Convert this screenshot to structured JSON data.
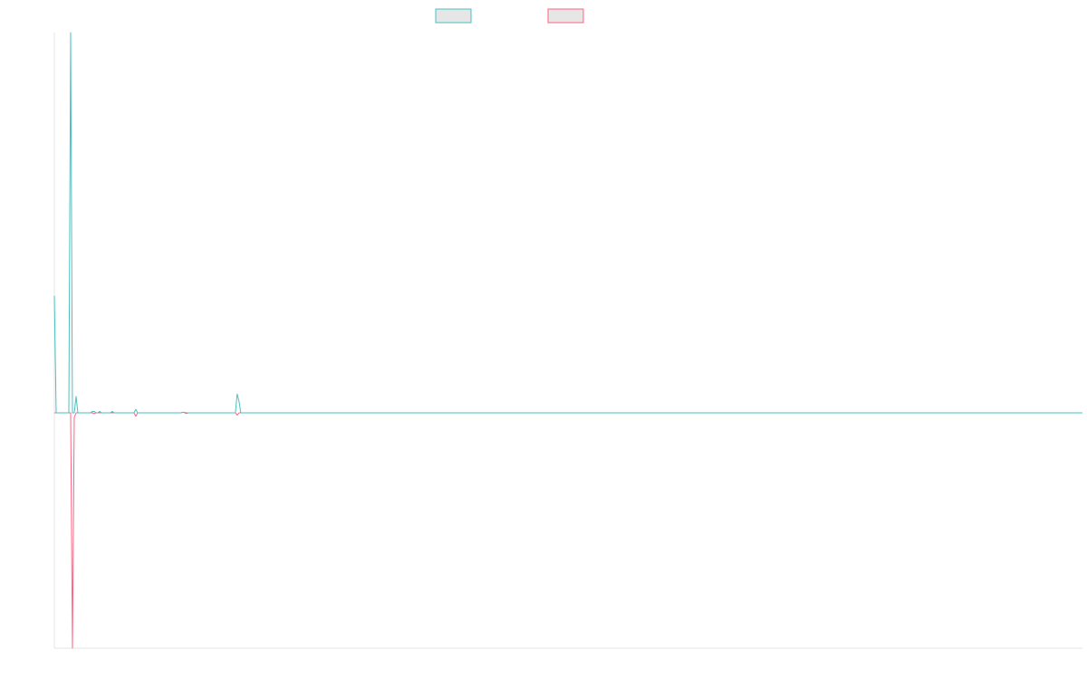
{
  "chart_data": {
    "type": "line",
    "title": "",
    "xlabel": "",
    "ylabel": "",
    "xlim": [
      0,
      568
    ],
    "ylim": [
      -1,
      1.623
    ],
    "grid": false,
    "legend_position": "top-center",
    "series": [
      {
        "color": "#4bc0c0",
        "fill": "#e6e6e6",
        "points": [
          [
            0,
            0.5
          ],
          [
            1,
            0.0
          ],
          [
            2,
            0.0
          ],
          [
            3,
            0.0
          ],
          [
            4,
            0.0
          ],
          [
            5,
            0.0
          ],
          [
            6,
            0.0
          ],
          [
            7,
            0.0
          ],
          [
            8,
            0.0
          ],
          [
            9,
            1.623
          ],
          [
            10,
            0.0
          ],
          [
            11,
            0.0
          ],
          [
            12,
            0.07
          ],
          [
            13,
            0.0
          ],
          [
            14,
            0.0
          ],
          [
            15,
            0.0
          ],
          [
            16,
            0.0
          ],
          [
            17,
            0.0
          ],
          [
            18,
            0.0
          ],
          [
            19,
            0.0
          ],
          [
            20,
            0.0
          ],
          [
            21,
            0.006
          ],
          [
            22,
            0.006
          ],
          [
            23,
            0.0
          ],
          [
            24,
            0.0
          ],
          [
            25,
            0.006
          ],
          [
            26,
            0.0
          ],
          [
            27,
            0.0
          ],
          [
            28,
            0.0
          ],
          [
            29,
            0.0
          ],
          [
            30,
            0.0
          ],
          [
            31,
            0.0
          ],
          [
            32,
            0.006
          ],
          [
            33,
            0.0
          ],
          [
            34,
            0.0
          ],
          [
            35,
            0.0
          ],
          [
            36,
            0.0
          ],
          [
            37,
            0.0
          ],
          [
            38,
            0.0
          ],
          [
            39,
            0.0
          ],
          [
            40,
            0.0
          ],
          [
            41,
            0.0
          ],
          [
            42,
            0.0
          ],
          [
            43,
            0.0
          ],
          [
            44,
            0.0
          ],
          [
            45,
            0.015
          ],
          [
            46,
            0.0
          ],
          [
            47,
            0.0
          ],
          [
            48,
            0.0
          ],
          [
            49,
            0.0
          ],
          [
            50,
            0.0
          ],
          [
            51,
            0.0
          ],
          [
            52,
            0.0
          ],
          [
            53,
            0.0
          ],
          [
            54,
            0.0
          ],
          [
            55,
            0.0
          ],
          [
            56,
            0.0
          ],
          [
            57,
            0.0
          ],
          [
            58,
            0.0
          ],
          [
            59,
            0.0
          ],
          [
            60,
            0.0
          ],
          [
            61,
            0.0
          ],
          [
            62,
            0.0
          ],
          [
            63,
            0.0
          ],
          [
            64,
            0.0
          ],
          [
            65,
            0.0
          ],
          [
            66,
            0.0
          ],
          [
            67,
            0.0
          ],
          [
            68,
            0.0
          ],
          [
            69,
            0.0
          ],
          [
            70,
            0.0
          ],
          [
            71,
            0.002
          ],
          [
            72,
            0.002
          ],
          [
            73,
            0.0
          ],
          [
            74,
            0.0
          ],
          [
            75,
            0.0
          ],
          [
            76,
            0.0
          ],
          [
            77,
            0.0
          ],
          [
            78,
            0.0
          ],
          [
            79,
            0.0
          ],
          [
            80,
            0.0
          ],
          [
            81,
            0.0
          ],
          [
            82,
            0.0
          ],
          [
            83,
            0.0
          ],
          [
            84,
            0.0
          ],
          [
            85,
            0.0
          ],
          [
            86,
            0.0
          ],
          [
            87,
            0.0
          ],
          [
            88,
            0.0
          ],
          [
            89,
            0.0
          ],
          [
            90,
            0.0
          ],
          [
            91,
            0.0
          ],
          [
            92,
            0.0
          ],
          [
            93,
            0.0
          ],
          [
            94,
            0.0
          ],
          [
            95,
            0.0
          ],
          [
            96,
            0.0
          ],
          [
            97,
            0.0
          ],
          [
            98,
            0.0
          ],
          [
            99,
            0.0
          ],
          [
            100,
            0.0
          ],
          [
            101,
            0.08
          ],
          [
            102,
            0.05
          ],
          [
            103,
            0.0
          ],
          [
            104,
            0.0
          ],
          [
            568,
            0.0
          ]
        ]
      },
      {
        "color": "#ff6384",
        "fill": "#e6e6e6",
        "points": [
          [
            0,
            0.0
          ],
          [
            1,
            0.0
          ],
          [
            2,
            0.0
          ],
          [
            3,
            0.0
          ],
          [
            4,
            0.0
          ],
          [
            5,
            0.0
          ],
          [
            6,
            0.0
          ],
          [
            7,
            0.0
          ],
          [
            8,
            0.0
          ],
          [
            9,
            0.0
          ],
          [
            10,
            -1.0
          ],
          [
            11,
            -0.02
          ],
          [
            12,
            0.0
          ],
          [
            13,
            0.0
          ],
          [
            14,
            0.0
          ],
          [
            15,
            0.0
          ],
          [
            16,
            0.0
          ],
          [
            17,
            0.0
          ],
          [
            18,
            0.0
          ],
          [
            19,
            0.0
          ],
          [
            20,
            0.0
          ],
          [
            21,
            0.0
          ],
          [
            22,
            -0.004
          ],
          [
            23,
            0.0
          ],
          [
            24,
            0.0
          ],
          [
            25,
            0.0
          ],
          [
            26,
            0.0
          ],
          [
            27,
            0.0
          ],
          [
            28,
            0.0
          ],
          [
            29,
            0.0
          ],
          [
            30,
            0.0
          ],
          [
            31,
            0.0
          ],
          [
            32,
            0.0
          ],
          [
            33,
            0.0
          ],
          [
            34,
            0.0
          ],
          [
            35,
            0.0
          ],
          [
            36,
            0.0
          ],
          [
            37,
            0.0
          ],
          [
            38,
            0.0
          ],
          [
            39,
            0.0
          ],
          [
            40,
            0.0
          ],
          [
            41,
            0.0
          ],
          [
            42,
            0.0
          ],
          [
            43,
            0.0
          ],
          [
            44,
            0.0
          ],
          [
            45,
            -0.015
          ],
          [
            46,
            0.0
          ],
          [
            47,
            0.0
          ],
          [
            48,
            0.0
          ],
          [
            49,
            0.0
          ],
          [
            50,
            0.0
          ],
          [
            51,
            0.0
          ],
          [
            52,
            0.0
          ],
          [
            53,
            0.0
          ],
          [
            54,
            0.0
          ],
          [
            55,
            0.0
          ],
          [
            56,
            0.0
          ],
          [
            57,
            0.0
          ],
          [
            58,
            0.0
          ],
          [
            59,
            0.0
          ],
          [
            60,
            0.0
          ],
          [
            61,
            0.0
          ],
          [
            62,
            0.0
          ],
          [
            63,
            0.0
          ],
          [
            64,
            0.0
          ],
          [
            65,
            0.0
          ],
          [
            66,
            0.0
          ],
          [
            67,
            0.0
          ],
          [
            68,
            0.0
          ],
          [
            69,
            0.0
          ],
          [
            70,
            0.0
          ],
          [
            71,
            0.003
          ],
          [
            72,
            0.0
          ],
          [
            73,
            -0.003
          ],
          [
            74,
            0.0
          ],
          [
            75,
            0.0
          ],
          [
            76,
            0.0
          ],
          [
            77,
            0.0
          ],
          [
            78,
            0.0
          ],
          [
            79,
            0.0
          ],
          [
            80,
            0.0
          ],
          [
            81,
            0.0
          ],
          [
            82,
            0.0
          ],
          [
            83,
            0.0
          ],
          [
            84,
            0.0
          ],
          [
            85,
            0.0
          ],
          [
            86,
            0.0
          ],
          [
            87,
            0.0
          ],
          [
            88,
            0.0
          ],
          [
            89,
            0.0
          ],
          [
            90,
            0.0
          ],
          [
            91,
            0.0
          ],
          [
            92,
            0.0
          ],
          [
            93,
            0.0
          ],
          [
            94,
            0.0
          ],
          [
            95,
            0.0
          ],
          [
            96,
            0.0
          ],
          [
            97,
            0.0
          ],
          [
            98,
            0.0
          ],
          [
            99,
            0.0
          ],
          [
            100,
            0.0
          ],
          [
            101,
            -0.01
          ],
          [
            102,
            0.0
          ],
          [
            103,
            0.0
          ],
          [
            104,
            0.0
          ],
          [
            568,
            0.0
          ]
        ]
      }
    ]
  }
}
